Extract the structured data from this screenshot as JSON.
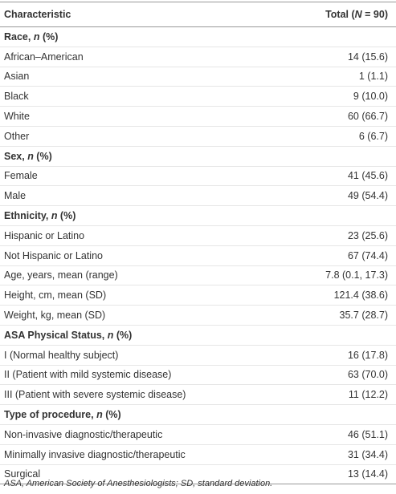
{
  "header": {
    "characteristic": "Characteristic",
    "total": [
      "Total (",
      "N",
      " = 90)"
    ]
  },
  "rows": [
    {
      "label": [
        "Race, ",
        "n",
        " (%)"
      ]
    },
    {
      "label": "African–American",
      "value": "14 (15.6)"
    },
    {
      "label": "Asian",
      "value": "1 (1.1)"
    },
    {
      "label": "Black",
      "value": "9 (10.0)"
    },
    {
      "label": "White",
      "value": "60 (66.7)"
    },
    {
      "label": "Other",
      "value": "6 (6.7)"
    },
    {
      "label": [
        "Sex, ",
        "n",
        " (%)"
      ]
    },
    {
      "label": "Female",
      "value": "41 (45.6)"
    },
    {
      "label": "Male",
      "value": "49 (54.4)"
    },
    {
      "label": [
        "Ethnicity, ",
        "n",
        " (%)"
      ]
    },
    {
      "label": "Hispanic or Latino",
      "value": "23 (25.6)"
    },
    {
      "label": "Not Hispanic or Latino",
      "value": "67 (74.4)"
    },
    {
      "label": "Age, years, mean (range)",
      "value": "7.8 (0.1, 17.3)"
    },
    {
      "label": "Height, cm, mean (SD)",
      "value": "121.4 (38.6)"
    },
    {
      "label": "Weight, kg, mean (SD)",
      "value": "35.7 (28.7)"
    },
    {
      "label": [
        "ASA Physical Status, ",
        "n",
        " (%)"
      ]
    },
    {
      "label": "I (Normal healthy subject)",
      "value": "16 (17.8)"
    },
    {
      "label": "II (Patient with mild systemic disease)",
      "value": "63 (70.0)"
    },
    {
      "label": "III (Patient with severe systemic disease)",
      "value": "11 (12.2)"
    },
    {
      "label": [
        "Type of procedure, ",
        "n",
        " (%)"
      ]
    },
    {
      "label": "Non-invasive diagnostic/therapeutic",
      "value": "46 (51.1)"
    },
    {
      "label": "Minimally invasive diagnostic/therapeutic",
      "value": "31 (34.4)"
    },
    {
      "label": "Surgical",
      "value": "13 (14.4)"
    }
  ],
  "footnote": "ASA, American Society of Anesthesiologists; SD, standard deviation."
}
